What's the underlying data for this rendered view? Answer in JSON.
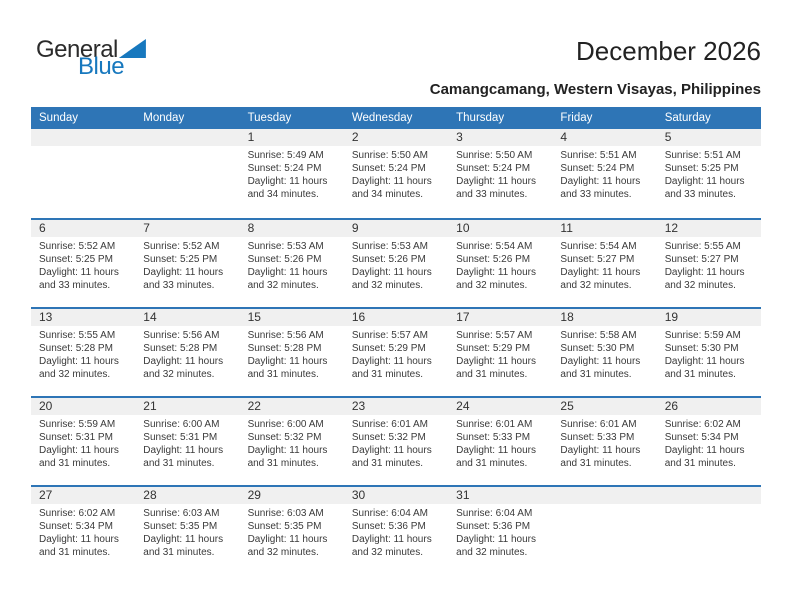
{
  "logo": {
    "part1": "General",
    "part2": "Blue"
  },
  "header": {
    "title": "December 2026",
    "subtitle": "Camangcamang, Western Visayas, Philippines"
  },
  "colors": {
    "header_blue": "#2E75B6",
    "row_stripe": "#F0F0F0",
    "logo_blue": "#1778BE"
  },
  "calendar": {
    "weekdays": [
      "Sunday",
      "Monday",
      "Tuesday",
      "Wednesday",
      "Thursday",
      "Friday",
      "Saturday"
    ],
    "first_day_column": 2,
    "labels": {
      "sunrise": "Sunrise:",
      "sunset": "Sunset:",
      "daylight": "Daylight:"
    },
    "days": [
      {
        "day": "1",
        "sunrise": "5:49 AM",
        "sunset": "5:24 PM",
        "daylight": "11 hours and 34 minutes."
      },
      {
        "day": "2",
        "sunrise": "5:50 AM",
        "sunset": "5:24 PM",
        "daylight": "11 hours and 34 minutes."
      },
      {
        "day": "3",
        "sunrise": "5:50 AM",
        "sunset": "5:24 PM",
        "daylight": "11 hours and 33 minutes."
      },
      {
        "day": "4",
        "sunrise": "5:51 AM",
        "sunset": "5:24 PM",
        "daylight": "11 hours and 33 minutes."
      },
      {
        "day": "5",
        "sunrise": "5:51 AM",
        "sunset": "5:25 PM",
        "daylight": "11 hours and 33 minutes."
      },
      {
        "day": "6",
        "sunrise": "5:52 AM",
        "sunset": "5:25 PM",
        "daylight": "11 hours and 33 minutes."
      },
      {
        "day": "7",
        "sunrise": "5:52 AM",
        "sunset": "5:25 PM",
        "daylight": "11 hours and 33 minutes."
      },
      {
        "day": "8",
        "sunrise": "5:53 AM",
        "sunset": "5:26 PM",
        "daylight": "11 hours and 32 minutes."
      },
      {
        "day": "9",
        "sunrise": "5:53 AM",
        "sunset": "5:26 PM",
        "daylight": "11 hours and 32 minutes."
      },
      {
        "day": "10",
        "sunrise": "5:54 AM",
        "sunset": "5:26 PM",
        "daylight": "11 hours and 32 minutes."
      },
      {
        "day": "11",
        "sunrise": "5:54 AM",
        "sunset": "5:27 PM",
        "daylight": "11 hours and 32 minutes."
      },
      {
        "day": "12",
        "sunrise": "5:55 AM",
        "sunset": "5:27 PM",
        "daylight": "11 hours and 32 minutes."
      },
      {
        "day": "13",
        "sunrise": "5:55 AM",
        "sunset": "5:28 PM",
        "daylight": "11 hours and 32 minutes."
      },
      {
        "day": "14",
        "sunrise": "5:56 AM",
        "sunset": "5:28 PM",
        "daylight": "11 hours and 32 minutes."
      },
      {
        "day": "15",
        "sunrise": "5:56 AM",
        "sunset": "5:28 PM",
        "daylight": "11 hours and 31 minutes."
      },
      {
        "day": "16",
        "sunrise": "5:57 AM",
        "sunset": "5:29 PM",
        "daylight": "11 hours and 31 minutes."
      },
      {
        "day": "17",
        "sunrise": "5:57 AM",
        "sunset": "5:29 PM",
        "daylight": "11 hours and 31 minutes."
      },
      {
        "day": "18",
        "sunrise": "5:58 AM",
        "sunset": "5:30 PM",
        "daylight": "11 hours and 31 minutes."
      },
      {
        "day": "19",
        "sunrise": "5:59 AM",
        "sunset": "5:30 PM",
        "daylight": "11 hours and 31 minutes."
      },
      {
        "day": "20",
        "sunrise": "5:59 AM",
        "sunset": "5:31 PM",
        "daylight": "11 hours and 31 minutes."
      },
      {
        "day": "21",
        "sunrise": "6:00 AM",
        "sunset": "5:31 PM",
        "daylight": "11 hours and 31 minutes."
      },
      {
        "day": "22",
        "sunrise": "6:00 AM",
        "sunset": "5:32 PM",
        "daylight": "11 hours and 31 minutes."
      },
      {
        "day": "23",
        "sunrise": "6:01 AM",
        "sunset": "5:32 PM",
        "daylight": "11 hours and 31 minutes."
      },
      {
        "day": "24",
        "sunrise": "6:01 AM",
        "sunset": "5:33 PM",
        "daylight": "11 hours and 31 minutes."
      },
      {
        "day": "25",
        "sunrise": "6:01 AM",
        "sunset": "5:33 PM",
        "daylight": "11 hours and 31 minutes."
      },
      {
        "day": "26",
        "sunrise": "6:02 AM",
        "sunset": "5:34 PM",
        "daylight": "11 hours and 31 minutes."
      },
      {
        "day": "27",
        "sunrise": "6:02 AM",
        "sunset": "5:34 PM",
        "daylight": "11 hours and 31 minutes."
      },
      {
        "day": "28",
        "sunrise": "6:03 AM",
        "sunset": "5:35 PM",
        "daylight": "11 hours and 31 minutes."
      },
      {
        "day": "29",
        "sunrise": "6:03 AM",
        "sunset": "5:35 PM",
        "daylight": "11 hours and 32 minutes."
      },
      {
        "day": "30",
        "sunrise": "6:04 AM",
        "sunset": "5:36 PM",
        "daylight": "11 hours and 32 minutes."
      },
      {
        "day": "31",
        "sunrise": "6:04 AM",
        "sunset": "5:36 PM",
        "daylight": "11 hours and 32 minutes."
      }
    ]
  }
}
